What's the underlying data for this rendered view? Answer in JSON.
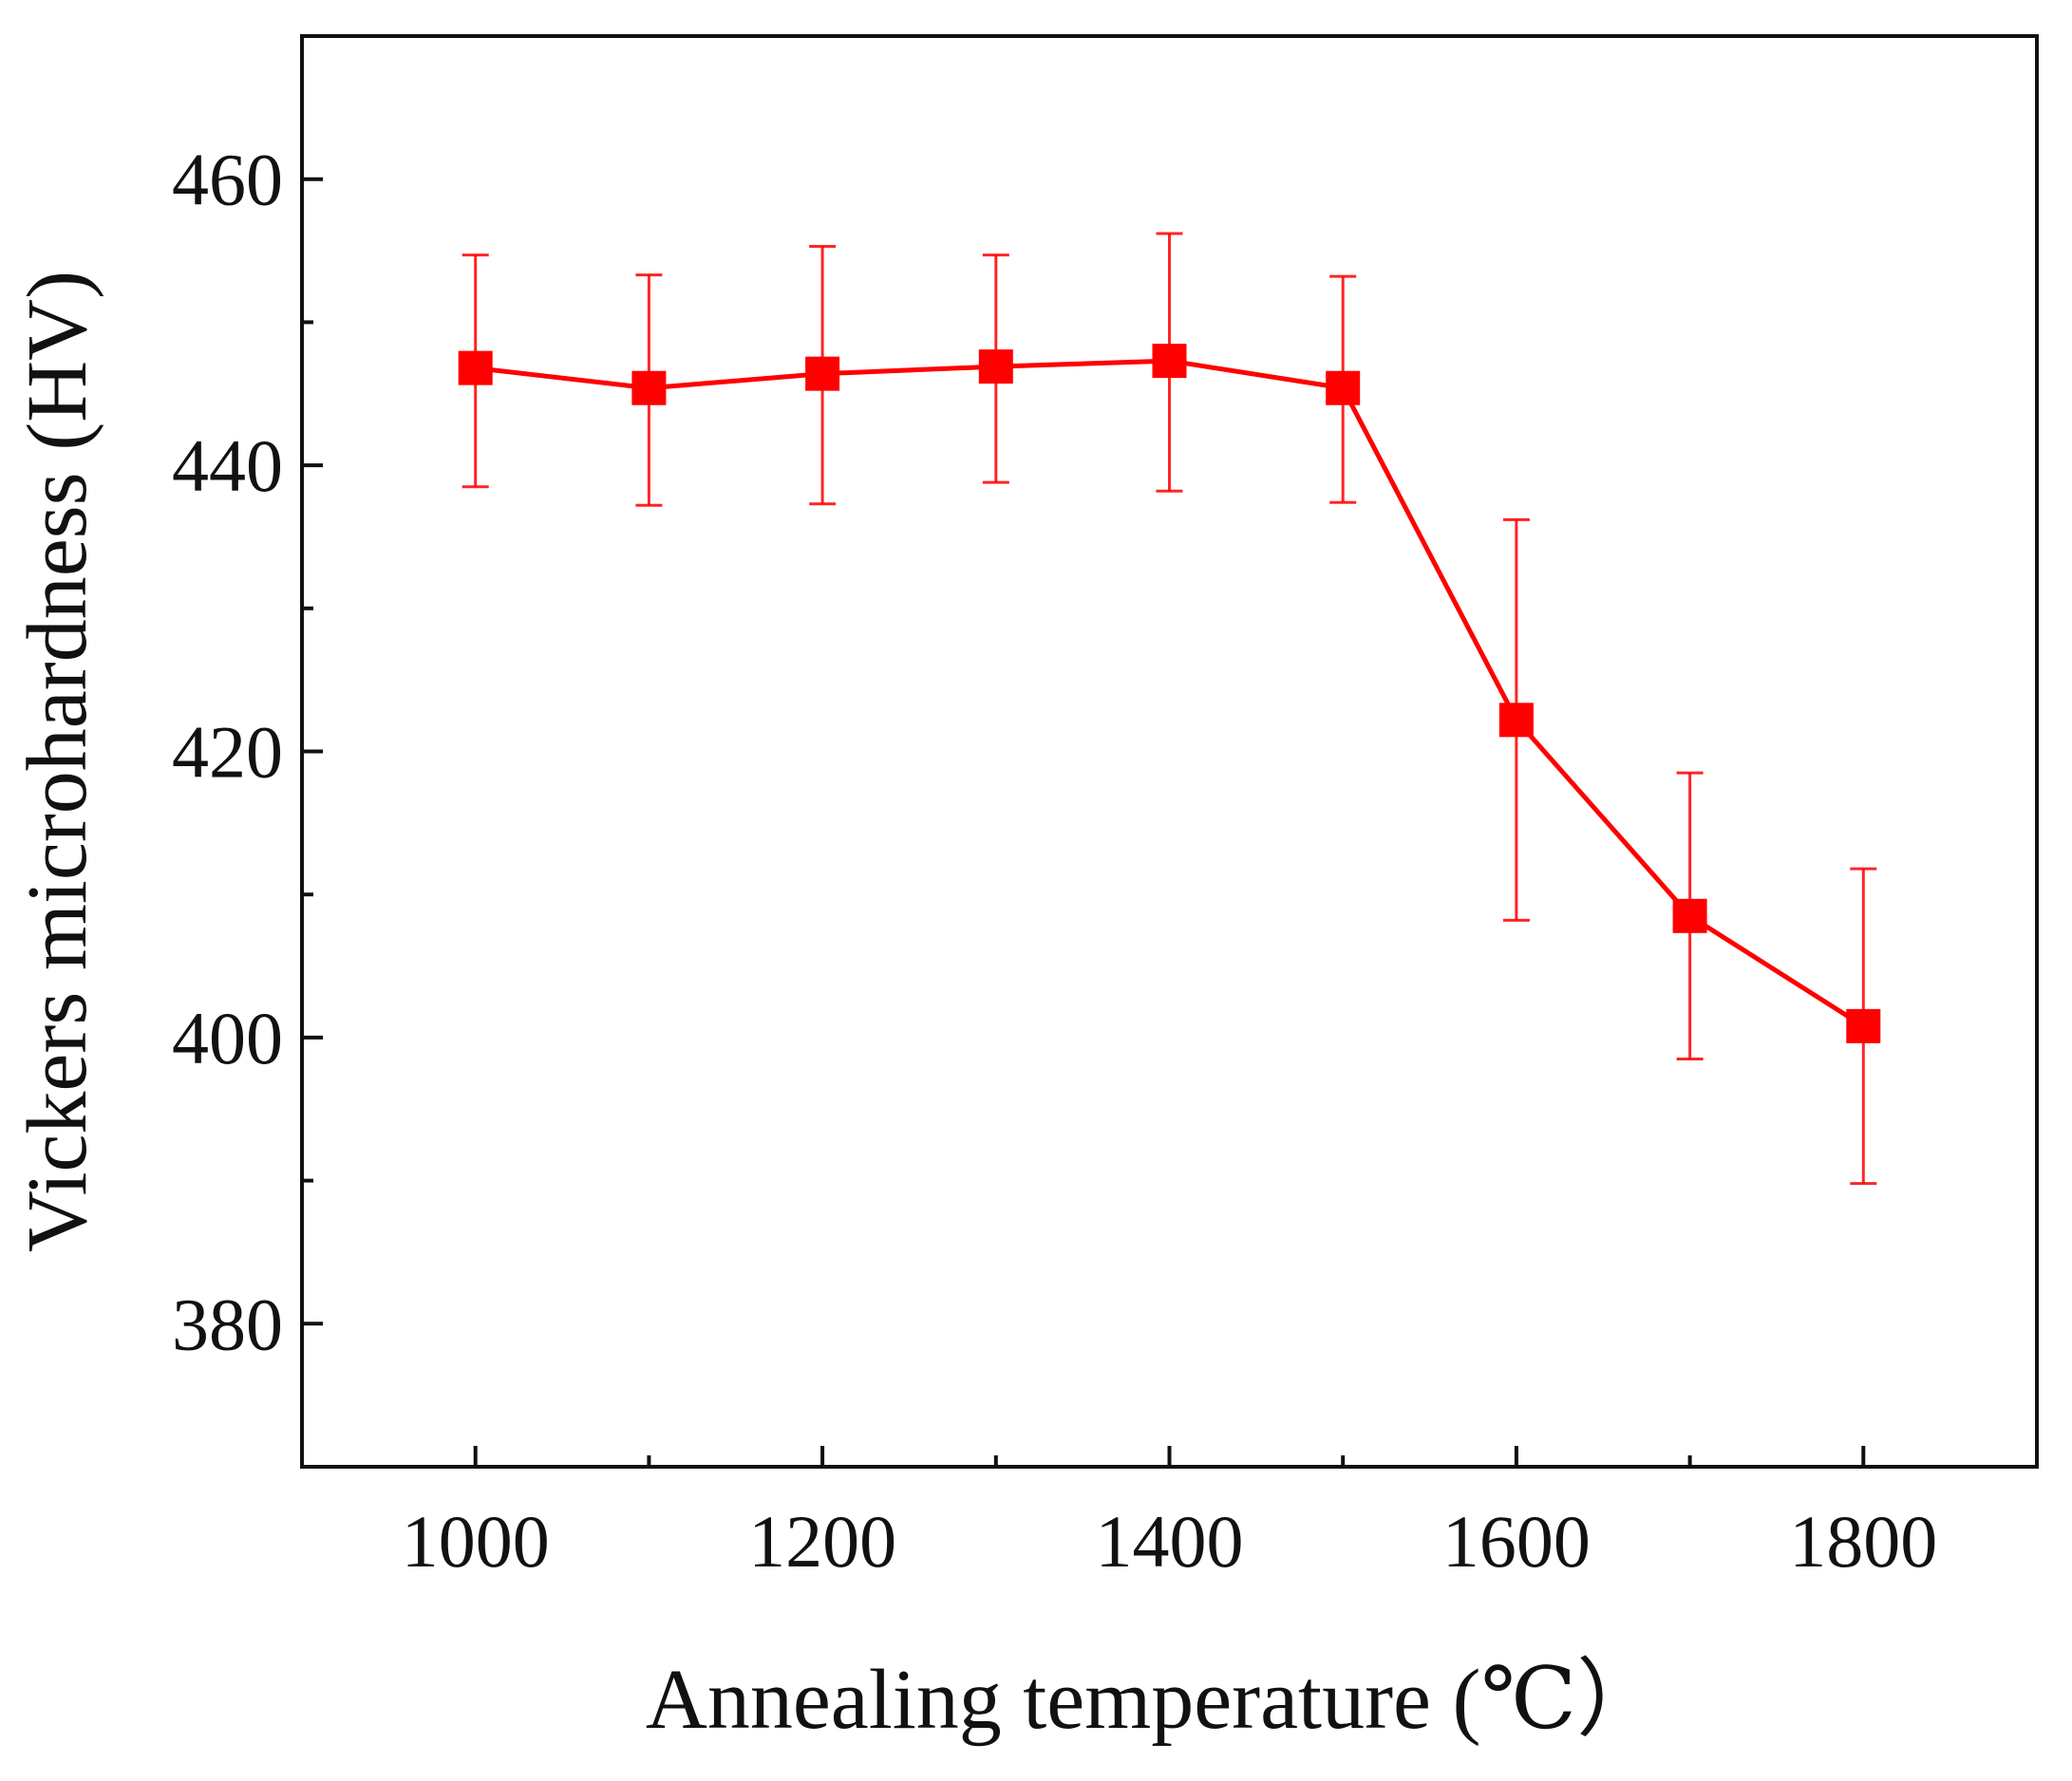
{
  "chart_data": {
    "type": "line",
    "title": "",
    "xlabel": "Annealing temperature (℃）",
    "ylabel": "Vickers microhardness (HV)",
    "xlim": [
      900,
      1900
    ],
    "ylim": [
      370,
      470
    ],
    "x_ticks": [
      1000,
      1200,
      1400,
      1600,
      1800
    ],
    "x_minor_ticks": [
      1100,
      1300,
      1500,
      1700
    ],
    "y_ticks": [
      380,
      400,
      420,
      440,
      460
    ],
    "y_minor_ticks": [
      390,
      410,
      430,
      450
    ],
    "grid": false,
    "legend": "none",
    "series": [
      {
        "color": "#ff0000",
        "marker": "square",
        "x": [
          1000,
          1100,
          1200,
          1300,
          1400,
          1500,
          1600,
          1700,
          1800
        ],
        "y": [
          446.8,
          445.4,
          446.4,
          446.9,
          447.3,
          445.4,
          422.2,
          408.5,
          400.8
        ],
        "error_low": [
          438.5,
          437.2,
          437.3,
          438.8,
          438.2,
          437.4,
          408.2,
          398.5,
          389.8
        ],
        "error_high": [
          454.7,
          453.3,
          455.3,
          454.7,
          456.2,
          453.2,
          436.2,
          418.5,
          411.8
        ]
      }
    ]
  }
}
